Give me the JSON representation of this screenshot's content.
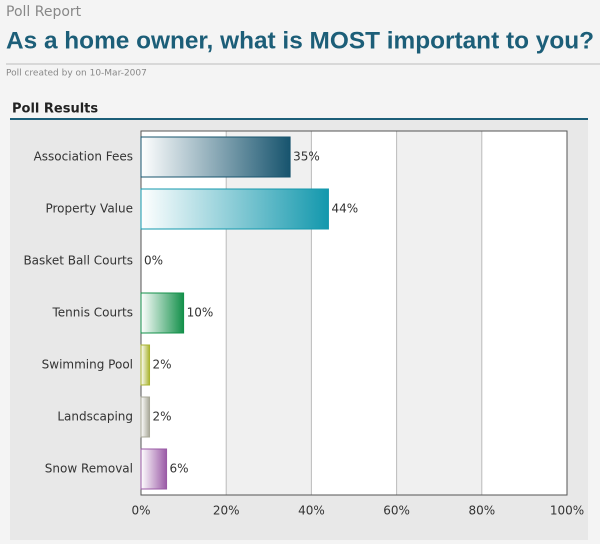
{
  "header": {
    "section": "Poll Report",
    "title": "As a home owner, what is MOST important to you?",
    "meta": "Poll created by on 10-Mar-2007"
  },
  "panel_title": "Poll Results",
  "chart_data": {
    "type": "bar",
    "orientation": "horizontal",
    "categories": [
      "Association Fees",
      "Property Value",
      "Basket Ball Courts",
      "Tennis Courts",
      "Swimming Pool",
      "Landscaping",
      "Snow Removal"
    ],
    "values": [
      35,
      44,
      0,
      10,
      2,
      2,
      6
    ],
    "value_labels": [
      "35%",
      "44%",
      "0%",
      "10%",
      "2%",
      "2%",
      "6%"
    ],
    "colors": [
      "#17546e",
      "#1398ad",
      "#8fb0c0",
      "#13904a",
      "#aab430",
      "#a8a898",
      "#9a5aa6"
    ],
    "xlim": [
      0,
      100
    ],
    "xticks": [
      {
        "value": 0,
        "label": "0%"
      },
      {
        "value": 20,
        "label": "20%"
      },
      {
        "value": 40,
        "label": "40%"
      },
      {
        "value": 60,
        "label": "60%"
      },
      {
        "value": 80,
        "label": "80%"
      },
      {
        "value": 100,
        "label": "100%"
      }
    ],
    "grid": true
  }
}
